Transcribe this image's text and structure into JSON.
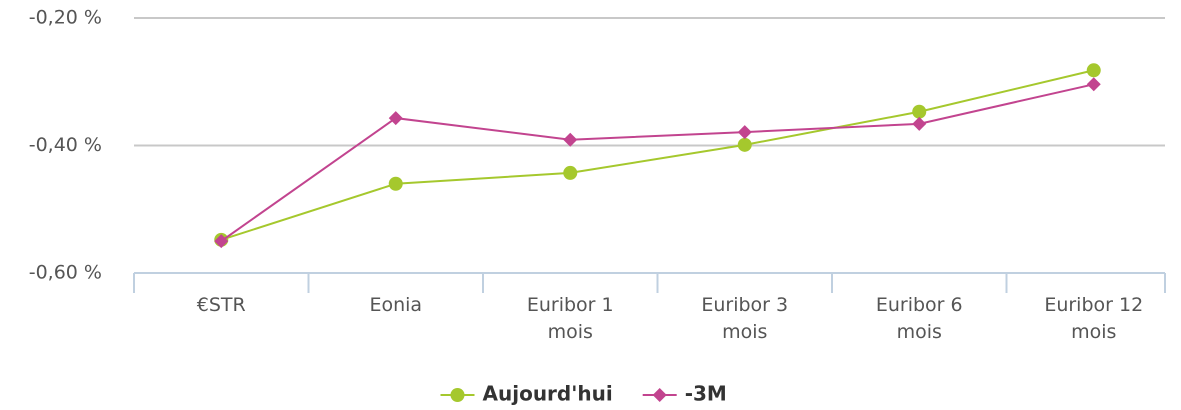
{
  "chart_data": {
    "type": "line",
    "categories": [
      "€STR",
      "Eonia",
      "Euribor 1 mois",
      "Euribor 3 mois",
      "Euribor 6 mois",
      "Euribor 12 mois"
    ],
    "series": [
      {
        "name": "Aujourd'hui",
        "color": "#a5c82d",
        "marker": "circle",
        "values": [
          -0.548,
          -0.46,
          -0.443,
          -0.399,
          -0.347,
          -0.282
        ]
      },
      {
        "name": "-3M",
        "color": "#c2448f",
        "marker": "diamond",
        "values": [
          -0.55,
          -0.357,
          -0.391,
          -0.379,
          -0.366,
          -0.304
        ]
      }
    ],
    "ylim": [
      -0.6,
      -0.2
    ],
    "yticks": [
      {
        "value": -0.6,
        "label": "-0,60 %"
      },
      {
        "value": -0.4,
        "label": "-0,40 %"
      },
      {
        "value": -0.2,
        "label": "-0,20 %"
      }
    ],
    "grid": true,
    "legend": "bottom"
  }
}
